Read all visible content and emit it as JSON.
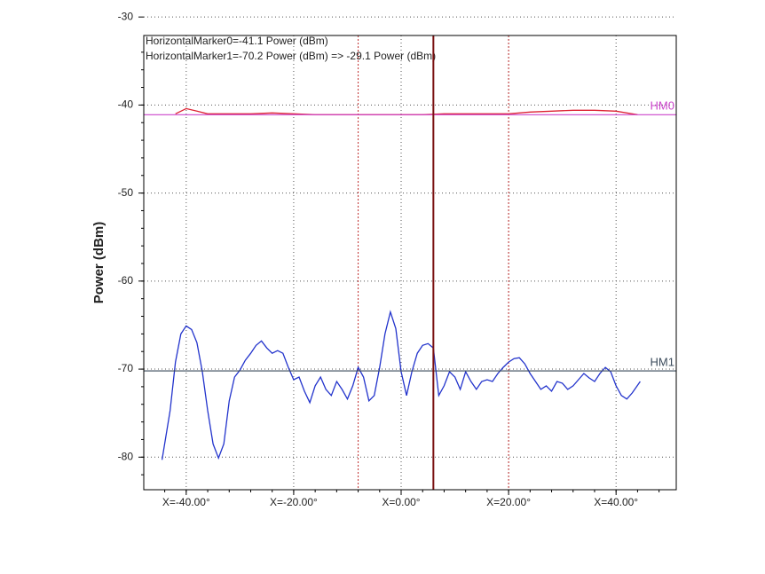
{
  "chart_data": {
    "type": "line",
    "y_label": "Power (dBm)",
    "annotations": [
      "HorizontalMarker0=-41.1 Power (dBm)",
      "HorizontalMarker1=-70.2 Power (dBm) => -29.1 Power (dBm)"
    ],
    "xlim": [
      -47.9,
      51.2
    ],
    "ylim": [
      -83.7,
      -32.1
    ],
    "xticks": [
      {
        "value": -40,
        "label": "X=-40.00°"
      },
      {
        "value": -20,
        "label": "X=-20.00°"
      },
      {
        "value": 0,
        "label": "X=0.00°"
      },
      {
        "value": 20,
        "label": "X=20.00°"
      },
      {
        "value": 40,
        "label": "X=40.00°"
      }
    ],
    "yticks": [
      -30,
      -40,
      -50,
      -60,
      -70,
      -80
    ],
    "grid": true,
    "vertical_marker": 6,
    "vertical_marker_color": "#7a1010",
    "vertical_marker_bounds": [
      -8,
      20
    ],
    "vertical_marker_bounds_color": "#c03030",
    "horizontal_markers": [
      {
        "name": "HM0",
        "value": -41.1,
        "color": "#cc44cc"
      },
      {
        "name": "HM1",
        "value": -70.2,
        "color": "#3a4a5a"
      }
    ],
    "series": [
      {
        "color": "#2233cc",
        "x": [
          -44.5,
          -43,
          -42,
          -41,
          -40,
          -39,
          -38,
          -37,
          -36,
          -35,
          -34,
          -33,
          -32,
          -31,
          -30,
          -29,
          -28,
          -27,
          -26,
          -25,
          -24,
          -23,
          -22,
          -21,
          -20,
          -19,
          -18,
          -17,
          -16,
          -15,
          -14,
          -13,
          -12,
          -11,
          -10,
          -9,
          -8,
          -7,
          -6,
          -5,
          -4,
          -3,
          -2,
          -1,
          0,
          1,
          2,
          3,
          4,
          5,
          6,
          7,
          8,
          9,
          10,
          11,
          12,
          13,
          14,
          15,
          16,
          17,
          18,
          19,
          20,
          21,
          22,
          23,
          24,
          25,
          26,
          27,
          28,
          29,
          30,
          31,
          32,
          33,
          34,
          35,
          36,
          37,
          38,
          39,
          40,
          41,
          42,
          43,
          44.5
        ],
        "values": [
          -80.3,
          -74.7,
          -69.2,
          -66,
          -65.1,
          -65.5,
          -67,
          -70.3,
          -74.7,
          -78.5,
          -80.1,
          -78.5,
          -73.6,
          -70.9,
          -70.1,
          -69,
          -68.2,
          -67.3,
          -66.8,
          -67.6,
          -68.2,
          -67.9,
          -68.2,
          -69.8,
          -71.2,
          -70.9,
          -72.5,
          -73.8,
          -71.9,
          -70.9,
          -72.3,
          -73,
          -71.4,
          -72.3,
          -73.4,
          -71.9,
          -69.8,
          -70.9,
          -73.6,
          -73,
          -69.8,
          -66,
          -63.5,
          -65.4,
          -70.3,
          -73,
          -70.3,
          -68.2,
          -67.3,
          -67.1,
          -67.6,
          -73,
          -71.9,
          -70.3,
          -70.9,
          -72.3,
          -70.3,
          -71.4,
          -72.3,
          -71.4,
          -71.2,
          -71.4,
          -70.5,
          -69.8,
          -69.2,
          -68.8,
          -68.7,
          -69.4,
          -70.5,
          -71.4,
          -72.3,
          -71.9,
          -72.5,
          -71.4,
          -71.6,
          -72.3,
          -71.9,
          -71.2,
          -70.5,
          -71,
          -71.4,
          -70.5,
          -69.8,
          -70.3,
          -71.9,
          -73,
          -73.4,
          -72.7,
          -71.4
        ]
      },
      {
        "color": "#dd2233",
        "x": [
          -42,
          -40,
          -38,
          -36,
          -32,
          -28,
          -24,
          -20,
          -16,
          -12,
          -8,
          -4,
          0,
          4,
          8,
          12,
          16,
          20,
          24,
          28,
          32,
          36,
          40,
          44
        ],
        "values": [
          -41,
          -40.4,
          -40.7,
          -41,
          -41,
          -41,
          -40.9,
          -41,
          -41.1,
          -41.1,
          -41.1,
          -41.1,
          -41.1,
          -41.1,
          -41,
          -41,
          -41,
          -41,
          -40.8,
          -40.7,
          -40.6,
          -40.6,
          -40.7,
          -41.1
        ]
      }
    ]
  }
}
